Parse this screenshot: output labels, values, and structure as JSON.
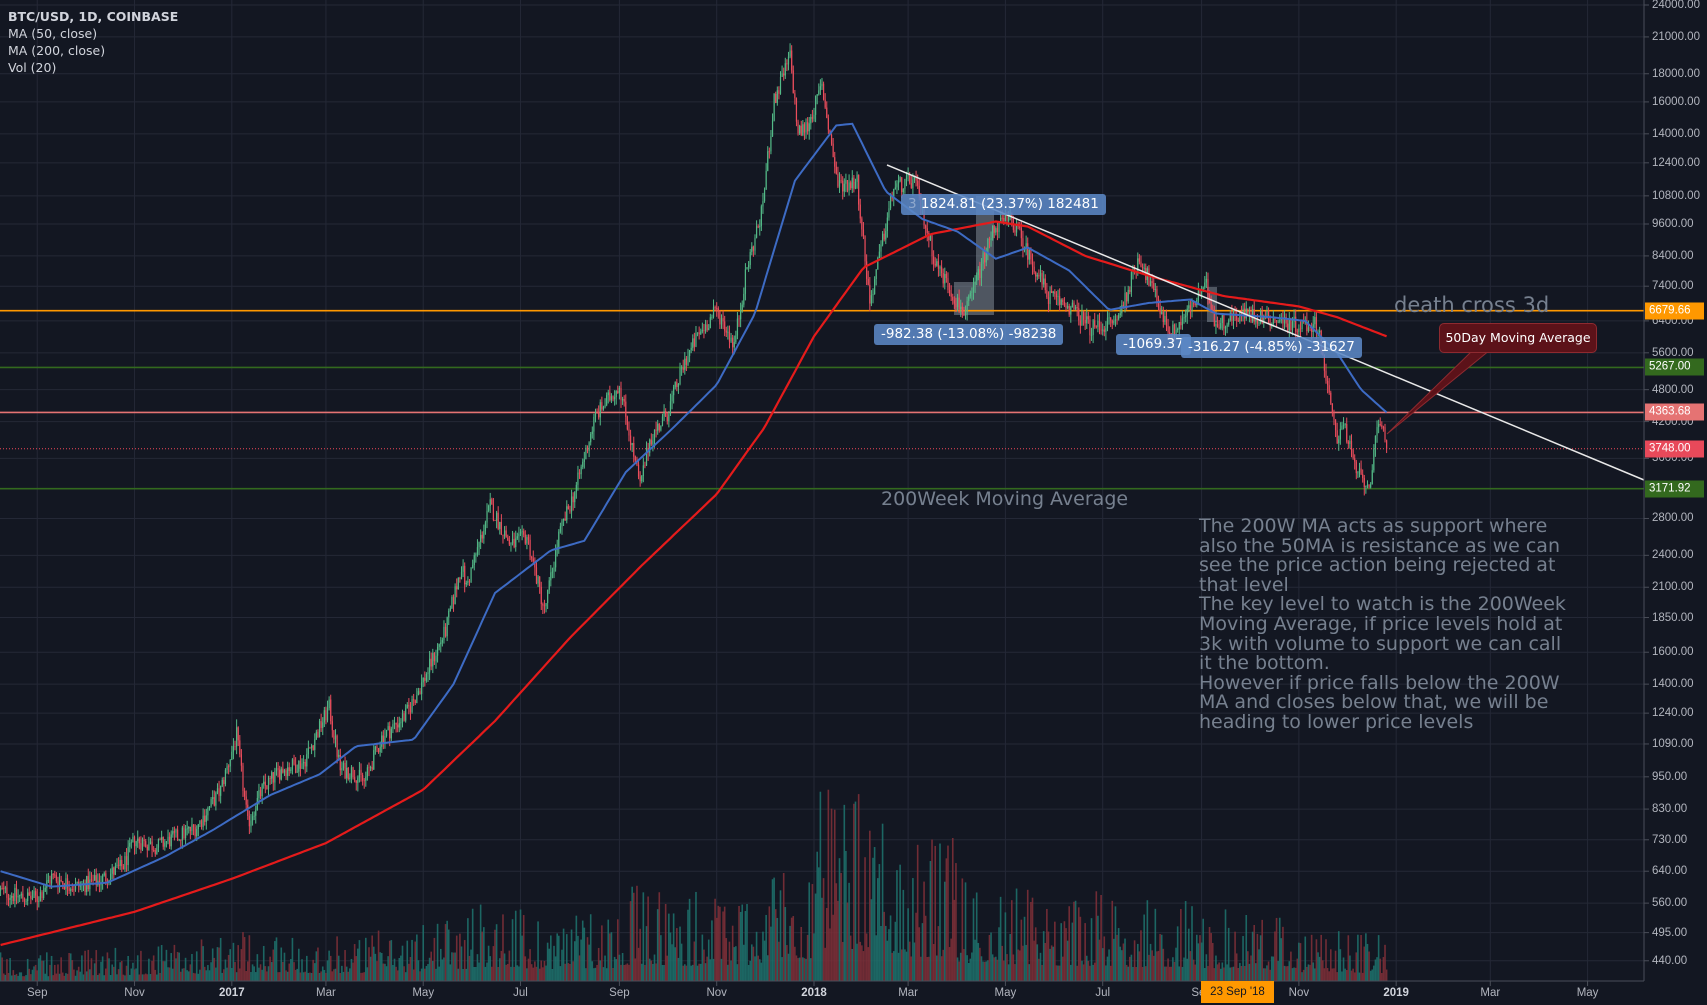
{
  "legend": {
    "symbol": "BTC/USD, 1D, COINBASE",
    "ma50": "MA (50, close)",
    "ma200": "MA (200, close)",
    "vol": "Vol (20)"
  },
  "chart_data": {
    "type": "candlestick",
    "y_scale": "log",
    "ylim": [
      420,
      24000
    ],
    "grid": true,
    "y_ticks": [
      "24000.00",
      "21000.00",
      "18000.00",
      "16000.00",
      "14000.00",
      "12400.00",
      "10800.00",
      "9600.00",
      "8400.00",
      "7400.00",
      "6400.00",
      "5600.00",
      "4800.00",
      "4200.00",
      "3600.00",
      "2800.00",
      "2400.00",
      "2100.00",
      "1850.00",
      "1600.00",
      "1400.00",
      "1240.00",
      "1090.00",
      "950.00",
      "830.00",
      "730.00",
      "640.00",
      "560.00",
      "495.00",
      "440.00"
    ],
    "x_ticks": [
      {
        "label": "Sep",
        "date": "2016-09-01"
      },
      {
        "label": "Nov",
        "date": "2016-11-01"
      },
      {
        "label": "2017",
        "date": "2017-01-01",
        "year": true
      },
      {
        "label": "Mar",
        "date": "2017-03-01"
      },
      {
        "label": "May",
        "date": "2017-05-01"
      },
      {
        "label": "Jul",
        "date": "2017-07-01"
      },
      {
        "label": "Sep",
        "date": "2017-09-01"
      },
      {
        "label": "Nov",
        "date": "2017-11-01"
      },
      {
        "label": "2018",
        "date": "2018-01-01",
        "year": true
      },
      {
        "label": "Mar",
        "date": "2018-03-01"
      },
      {
        "label": "May",
        "date": "2018-05-01"
      },
      {
        "label": "Jul",
        "date": "2018-07-01"
      },
      {
        "label": "Sep",
        "date": "2018-09-01"
      },
      {
        "label": "Nov",
        "date": "2018-11-01"
      },
      {
        "label": "2019",
        "date": "2019-01-01",
        "year": true
      },
      {
        "label": "Mar",
        "date": "2019-03-01"
      },
      {
        "label": "May",
        "date": "2019-05-01"
      }
    ],
    "price_path": [
      [
        "2016-08-09",
        590
      ],
      [
        "2016-08-20",
        575
      ],
      [
        "2016-09-01",
        572
      ],
      [
        "2016-09-10",
        625
      ],
      [
        "2016-09-25",
        600
      ],
      [
        "2016-10-10",
        615
      ],
      [
        "2016-10-25",
        655
      ],
      [
        "2016-11-01",
        730
      ],
      [
        "2016-11-15",
        710
      ],
      [
        "2016-11-30",
        745
      ],
      [
        "2016-12-10",
        770
      ],
      [
        "2016-12-25",
        900
      ],
      [
        "2017-01-04",
        1130
      ],
      [
        "2017-01-11",
        780
      ],
      [
        "2017-01-20",
        900
      ],
      [
        "2017-02-01",
        980
      ],
      [
        "2017-02-15",
        1010
      ],
      [
        "2017-03-03",
        1270
      ],
      [
        "2017-03-10",
        980
      ],
      [
        "2017-03-18",
        970
      ],
      [
        "2017-03-25",
        930
      ],
      [
        "2017-04-05",
        1120
      ],
      [
        "2017-04-20",
        1230
      ],
      [
        "2017-05-01",
        1420
      ],
      [
        "2017-05-15",
        1750
      ],
      [
        "2017-05-25",
        2300
      ],
      [
        "2017-05-28",
        2100
      ],
      [
        "2017-06-12",
        2950
      ],
      [
        "2017-06-25",
        2500
      ],
      [
        "2017-07-05",
        2600
      ],
      [
        "2017-07-16",
        1900
      ],
      [
        "2017-07-25",
        2600
      ],
      [
        "2017-08-05",
        3200
      ],
      [
        "2017-08-17",
        4300
      ],
      [
        "2017-09-01",
        4900
      ],
      [
        "2017-09-14",
        3200
      ],
      [
        "2017-09-20",
        3900
      ],
      [
        "2017-10-01",
        4350
      ],
      [
        "2017-10-12",
        5400
      ],
      [
        "2017-10-20",
        6000
      ],
      [
        "2017-11-01",
        6700
      ],
      [
        "2017-11-12",
        5800
      ],
      [
        "2017-11-20",
        8000
      ],
      [
        "2017-11-29",
        10000
      ],
      [
        "2017-12-07",
        16000
      ],
      [
        "2017-12-17",
        19400
      ],
      [
        "2017-12-22",
        14000
      ],
      [
        "2017-12-28",
        14500
      ],
      [
        "2018-01-06",
        17100
      ],
      [
        "2018-01-16",
        11300
      ],
      [
        "2018-01-28",
        11500
      ],
      [
        "2018-02-05",
        6900
      ],
      [
        "2018-02-20",
        11200
      ],
      [
        "2018-03-05",
        11500
      ],
      [
        "2018-03-18",
        8200
      ],
      [
        "2018-04-01",
        6900
      ],
      [
        "2018-04-06",
        6600
      ],
      [
        "2018-04-24",
        9500
      ],
      [
        "2018-05-05",
        9800
      ],
      [
        "2018-05-28",
        7100
      ],
      [
        "2018-06-10",
        6800
      ],
      [
        "2018-06-24",
        6200
      ],
      [
        "2018-07-10",
        6400
      ],
      [
        "2018-07-24",
        8400
      ],
      [
        "2018-08-10",
        6300
      ],
      [
        "2018-08-14",
        6100
      ],
      [
        "2018-09-04",
        7400
      ],
      [
        "2018-09-10",
        6300
      ],
      [
        "2018-09-25",
        6600
      ],
      [
        "2018-10-10",
        6500
      ],
      [
        "2018-10-31",
        6300
      ],
      [
        "2018-11-13",
        6300
      ],
      [
        "2018-11-20",
        4600
      ],
      [
        "2018-11-25",
        3900
      ],
      [
        "2018-11-28",
        4250
      ],
      [
        "2018-12-07",
        3400
      ],
      [
        "2018-12-15",
        3200
      ],
      [
        "2018-12-20",
        4000
      ],
      [
        "2018-12-24",
        4100
      ],
      [
        "2018-12-26",
        3748
      ]
    ],
    "ma50": [
      [
        "2016-08-09",
        640
      ],
      [
        "2016-09-10",
        600
      ],
      [
        "2016-10-15",
        610
      ],
      [
        "2016-11-20",
        680
      ],
      [
        "2016-12-20",
        760
      ],
      [
        "2017-01-25",
        880
      ],
      [
        "2017-02-25",
        960
      ],
      [
        "2017-03-20",
        1080
      ],
      [
        "2017-04-25",
        1110
      ],
      [
        "2017-05-20",
        1400
      ],
      [
        "2017-06-15",
        2050
      ],
      [
        "2017-07-20",
        2450
      ],
      [
        "2017-08-10",
        2550
      ],
      [
        "2017-09-05",
        3400
      ],
      [
        "2017-10-05",
        4100
      ],
      [
        "2017-11-01",
        4900
      ],
      [
        "2017-11-25",
        6600
      ],
      [
        "2017-12-20",
        11500
      ],
      [
        "2018-01-15",
        14500
      ],
      [
        "2018-01-25",
        14600
      ],
      [
        "2018-02-15",
        11000
      ],
      [
        "2018-03-10",
        9800
      ],
      [
        "2018-04-01",
        9300
      ],
      [
        "2018-04-25",
        8300
      ],
      [
        "2018-05-15",
        8700
      ],
      [
        "2018-06-10",
        7900
      ],
      [
        "2018-07-05",
        6700
      ],
      [
        "2018-07-30",
        6900
      ],
      [
        "2018-08-25",
        7000
      ],
      [
        "2018-09-10",
        6600
      ],
      [
        "2018-10-15",
        6500
      ],
      [
        "2018-11-05",
        6400
      ],
      [
        "2018-11-25",
        5600
      ],
      [
        "2018-12-10",
        4800
      ],
      [
        "2018-12-26",
        4363.68
      ]
    ],
    "ma200": [
      [
        "2016-08-09",
        470
      ],
      [
        "2016-11-01",
        540
      ],
      [
        "2017-01-01",
        620
      ],
      [
        "2017-03-01",
        720
      ],
      [
        "2017-05-01",
        900
      ],
      [
        "2017-06-15",
        1200
      ],
      [
        "2017-08-01",
        1700
      ],
      [
        "2017-09-15",
        2300
      ],
      [
        "2017-11-01",
        3100
      ],
      [
        "2017-12-01",
        4100
      ],
      [
        "2018-01-01",
        6000
      ],
      [
        "2018-02-01",
        8000
      ],
      [
        "2018-03-15",
        9200
      ],
      [
        "2018-04-25",
        9700
      ],
      [
        "2018-05-15",
        9500
      ],
      [
        "2018-06-20",
        8400
      ],
      [
        "2018-08-01",
        7700
      ],
      [
        "2018-09-15",
        7100
      ],
      [
        "2018-11-01",
        6800
      ],
      [
        "2018-11-25",
        6500
      ],
      [
        "2018-12-26",
        6000
      ]
    ],
    "volume_relative_by_month": [
      0.12,
      0.12,
      0.14,
      0.16,
      0.18,
      0.22,
      0.2,
      0.2,
      0.22,
      0.3,
      0.35,
      0.3,
      0.32,
      0.4,
      0.38,
      0.4,
      0.55,
      0.8,
      0.7,
      0.6,
      0.45,
      0.4,
      0.38,
      0.35,
      0.35,
      0.3,
      0.28,
      0.22,
      0.2,
      0.55,
      0.5
    ],
    "levels": [
      {
        "value": 6679.66,
        "label": "6679.66",
        "color": "#ff9800",
        "style": "solid"
      },
      {
        "value": 5267.0,
        "label": "5267.00",
        "color": "#33691e",
        "style": "solid"
      },
      {
        "value": 4363.68,
        "label": "4363.68",
        "color": "#e57373",
        "style": "solid"
      },
      {
        "value": 3748.0,
        "label": "3748.00",
        "color": "#f0485a",
        "style": "dotted"
      },
      {
        "value": 3171.92,
        "label": "3171.92",
        "color": "#33691e",
        "style": "solid"
      }
    ],
    "colors": {
      "up": "#53b987",
      "down": "#eb4d5c",
      "ma50": "#3d6bc4",
      "ma200": "#e51b1b",
      "vol_up": "#1e6f6a",
      "vol_down": "#7c2f37"
    },
    "crosshair_time": "23 Sep '18"
  },
  "annotations": {
    "measure_up": "1824.81 (23.37%) 182481",
    "measure_up_prefix": "3",
    "measure_down1": "-982.38 (-13.08%) -98238",
    "measure_down2": "-1069.37",
    "measure_down3": "-316.27 (-4.85%) -31627",
    "death_cross": "death cross 3d",
    "ma200w": "200Week Moving Average",
    "callout": "50Day Moving Average",
    "paragraph": [
      "The 200W MA acts as support where",
      "also the 50MA is resistance as we can",
      "see the price action being rejected at",
      "that level",
      "The key level to watch is the 200Week",
      "Moving Average, if price levels hold at",
      "3k with volume to support we can call",
      "it the bottom.",
      "However if price falls below the 200W",
      "MA and closes below that, we will be",
      "heading to lower price levels"
    ]
  }
}
